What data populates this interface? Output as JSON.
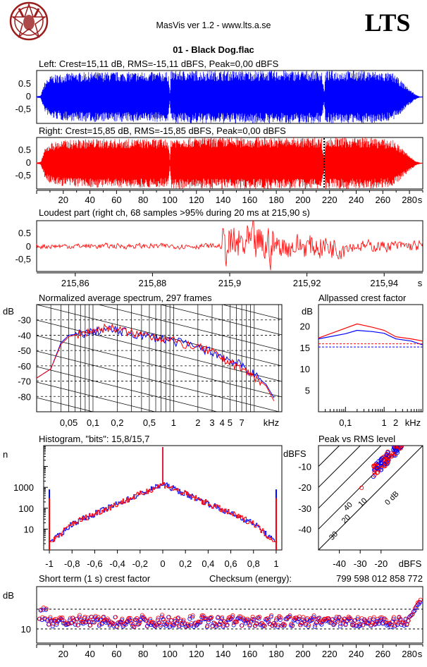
{
  "header": {
    "app_title": "MasVis ver 1.2 - www.lts.a.se",
    "brand": "LTS",
    "file_title": "01 - Black Dog.flac"
  },
  "colors": {
    "left": "#0000ff",
    "right": "#ff0000",
    "logo": "#9a1c1c"
  },
  "chart_data": [
    {
      "type": "line",
      "id": "left-waveform",
      "title": "Left: Crest=15,11 dB, RMS=-15,11 dBFS, Peak=0,00 dBFS",
      "ylim": [
        -1,
        1
      ],
      "yticks": [
        "0.5",
        "0",
        "-0,5"
      ],
      "xlim": [
        0,
        290
      ],
      "envelope": [
        [
          0,
          0.03
        ],
        [
          3,
          0.05
        ],
        [
          6,
          0.55
        ],
        [
          10,
          0.8
        ],
        [
          20,
          0.9
        ],
        [
          40,
          0.95
        ],
        [
          60,
          0.95
        ],
        [
          80,
          0.95
        ],
        [
          99,
          0.95
        ],
        [
          100,
          0.15
        ],
        [
          101,
          1.0
        ],
        [
          150,
          1.0
        ],
        [
          200,
          1.0
        ],
        [
          214,
          1.0
        ],
        [
          216,
          0.2
        ],
        [
          217,
          1.0
        ],
        [
          250,
          1.0
        ],
        [
          268,
          0.9
        ],
        [
          274,
          0.6
        ],
        [
          280,
          0.3
        ],
        [
          285,
          0.08
        ],
        [
          288,
          0.02
        ]
      ]
    },
    {
      "type": "line",
      "id": "right-waveform",
      "title": "Right: Crest=15,85 dB, RMS=-15,85 dBFS, Peak=0,00 dBFS",
      "ylim": [
        -1,
        1
      ],
      "yticks": [
        "0.5",
        "0",
        "-0,5"
      ],
      "xlim": [
        0,
        290
      ],
      "x_unit": "s",
      "xticks": [
        "20",
        "40",
        "60",
        "80",
        "100",
        "120",
        "140",
        "160",
        "180",
        "200",
        "220",
        "240",
        "260",
        "280"
      ],
      "marker_x": 215.9,
      "envelope": [
        [
          0,
          0.03
        ],
        [
          3,
          0.05
        ],
        [
          6,
          0.55
        ],
        [
          10,
          0.8
        ],
        [
          20,
          0.9
        ],
        [
          40,
          0.95
        ],
        [
          60,
          0.95
        ],
        [
          80,
          0.95
        ],
        [
          99,
          0.95
        ],
        [
          100,
          0.15
        ],
        [
          101,
          1.0
        ],
        [
          150,
          1.0
        ],
        [
          200,
          1.0
        ],
        [
          214,
          1.0
        ],
        [
          216,
          0.2
        ],
        [
          217,
          1.0
        ],
        [
          250,
          1.0
        ],
        [
          268,
          0.9
        ],
        [
          274,
          0.6
        ],
        [
          280,
          0.3
        ],
        [
          285,
          0.08
        ],
        [
          288,
          0.02
        ]
      ]
    },
    {
      "type": "line",
      "id": "loudest-part",
      "title": "Loudest part (right ch, 68 samples >95% during 20 ms at 215,90 s)",
      "ylim": [
        -1,
        1
      ],
      "yticks": [
        "0.5",
        "0",
        "-0,5"
      ],
      "xlim": [
        215.85,
        215.95
      ],
      "x_unit": "s",
      "xticks": [
        "215,86",
        "215,88",
        "215,9",
        "215,92",
        "215,94"
      ]
    },
    {
      "type": "line",
      "id": "avg-spectrum",
      "title": "Normalized average spectrum, 297 frames",
      "ylabel": "dB",
      "x_unit": "kHz",
      "xscale": "log",
      "ylim": [
        -90,
        -20
      ],
      "yticks": [
        "-30",
        "-40",
        "-50",
        "-60",
        "-70",
        "-80"
      ],
      "xticks": [
        "0,05",
        "0,1",
        "0,2",
        "0,5",
        "1",
        "2",
        "3",
        "4",
        "5",
        "7"
      ],
      "series": [
        {
          "color": "blue",
          "points": [
            [
              0.02,
              -68
            ],
            [
              0.03,
              -62
            ],
            [
              0.04,
              -45
            ],
            [
              0.05,
              -40
            ],
            [
              0.07,
              -39
            ],
            [
              0.1,
              -38
            ],
            [
              0.15,
              -36
            ],
            [
              0.2,
              -37
            ],
            [
              0.3,
              -39
            ],
            [
              0.5,
              -41
            ],
            [
              0.7,
              -42
            ],
            [
              1,
              -44
            ],
            [
              2,
              -48
            ],
            [
              3,
              -51
            ],
            [
              4,
              -54
            ],
            [
              5,
              -56
            ],
            [
              7,
              -60
            ],
            [
              10,
              -66
            ],
            [
              14,
              -72
            ],
            [
              18,
              -82
            ]
          ]
        },
        {
          "color": "red",
          "points": [
            [
              0.02,
              -68
            ],
            [
              0.03,
              -62
            ],
            [
              0.04,
              -46
            ],
            [
              0.05,
              -41
            ],
            [
              0.07,
              -39
            ],
            [
              0.1,
              -37
            ],
            [
              0.15,
              -35
            ],
            [
              0.2,
              -36
            ],
            [
              0.3,
              -39
            ],
            [
              0.5,
              -40
            ],
            [
              0.7,
              -42
            ],
            [
              1,
              -44
            ],
            [
              2,
              -48
            ],
            [
              3,
              -51
            ],
            [
              4,
              -55
            ],
            [
              5,
              -58
            ],
            [
              7,
              -62
            ],
            [
              10,
              -67
            ],
            [
              14,
              -73
            ],
            [
              18,
              -84
            ]
          ]
        }
      ]
    },
    {
      "type": "line",
      "id": "allpassed-crest",
      "title": "Allpassed crest factor",
      "ylabel": "dB",
      "x_unit": "kHz",
      "xscale": "log",
      "ylim": [
        0,
        25
      ],
      "yticks": [
        "20",
        "15",
        "10",
        "5"
      ],
      "xticks": [
        "0,1",
        "1",
        "2"
      ],
      "series": [
        {
          "color": "blue",
          "points": [
            [
              0.02,
              17
            ],
            [
              0.1,
              18.2
            ],
            [
              0.2,
              19
            ],
            [
              0.5,
              18.7
            ],
            [
              1,
              18.3
            ],
            [
              2,
              17
            ],
            [
              5,
              16.5
            ],
            [
              10,
              15.6
            ]
          ]
        },
        {
          "color": "red",
          "points": [
            [
              0.02,
              17.2
            ],
            [
              0.1,
              19.5
            ],
            [
              0.2,
              20.5
            ],
            [
              0.5,
              19.7
            ],
            [
              1,
              19
            ],
            [
              2,
              17.5
            ],
            [
              5,
              17
            ],
            [
              10,
              16.5
            ]
          ]
        }
      ],
      "ref_lines": [
        {
          "color": "blue",
          "value": 15.11
        },
        {
          "color": "red",
          "value": 15.85
        }
      ]
    },
    {
      "type": "line",
      "id": "histogram",
      "title": "Histogram, \"bits\": 15,8/15,7",
      "ylabel": "n",
      "yscale": "log",
      "ylim": [
        1,
        100000
      ],
      "yticks": [
        "1000",
        "100",
        "10"
      ],
      "xlim": [
        -1.05,
        1.05
      ],
      "xticks": [
        "-1",
        "-0,8",
        "-0,6",
        "-0,4",
        "-0,2",
        "0",
        "0,2",
        "0,4",
        "0,6",
        "0,8",
        "1"
      ]
    },
    {
      "type": "scatter",
      "id": "peak-vs-rms",
      "title": "Peak vs RMS level",
      "ylabel": "dBFS",
      "xlabel": "dBFS",
      "xlim": [
        -50,
        0
      ],
      "ylim": [
        -50,
        0
      ],
      "yticks": [
        "-10",
        "-20",
        "-30",
        "-40"
      ],
      "xticks": [
        "-40",
        "-30",
        "-20"
      ],
      "diag_labels": [
        "40",
        "30",
        "20",
        "10",
        "0 dB"
      ]
    },
    {
      "type": "scatter",
      "id": "short-term-crest",
      "title": "Short term (1 s) crest factor",
      "ylabel": "dB",
      "ytick": "10",
      "x_unit": "s",
      "xlim": [
        0,
        290
      ],
      "xticks": [
        "20",
        "40",
        "60",
        "80",
        "100",
        "120",
        "140",
        "160",
        "180",
        "200",
        "220",
        "240",
        "260",
        "280"
      ]
    }
  ],
  "checksum": {
    "label": "Checksum (energy):",
    "value": "799 598 012 858 772"
  }
}
